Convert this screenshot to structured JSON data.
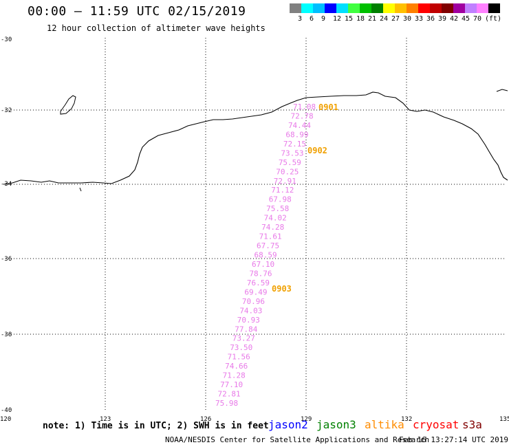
{
  "title": "00:00 – 11:59 UTC 02/15/2019",
  "subtitle": "12 hour collection of altimeter wave heights",
  "legend": {
    "colors": [
      "#808080",
      "#00ffff",
      "#00bfff",
      "#0000ff",
      "#00dfff",
      "#40ff40",
      "#00c000",
      "#008000",
      "#ffff00",
      "#ffc000",
      "#ff8000",
      "#ff0000",
      "#c00000",
      "#800000",
      "#a000a0",
      "#c080ff",
      "#ff80ff",
      "#000000"
    ],
    "labels": [
      "3",
      "6",
      "9",
      "12",
      "15",
      "18",
      "21",
      "24",
      "27",
      "30",
      "33",
      "36",
      "39",
      "42",
      "45",
      "70",
      "(ft)"
    ]
  },
  "lat_labels": [
    "-30",
    "-32",
    "-34",
    "-36",
    "-38",
    "-40"
  ],
  "lon_labels": [
    "120",
    "123",
    "126",
    "129",
    "132",
    "135"
  ],
  "track_values": [
    "71.08",
    "72.78",
    "74.44",
    "68.99",
    "72.15",
    "73.53",
    "75.59",
    "70.25",
    "72.91",
    "71.12",
    "67.98",
    "75.58",
    "74.02",
    "74.28",
    "71.61",
    "67.75",
    "68.59",
    "67.10",
    "78.76",
    "76.59",
    "69.49",
    "70.96",
    "74.03",
    "70.93",
    "77.84",
    "73.27",
    "73.50",
    "71.56",
    "74.66",
    "71.28",
    "77.10",
    "72.81",
    "75.98"
  ],
  "time_labels": [
    "0901",
    "0902",
    "0903"
  ],
  "colors": {
    "track": "#e879e8",
    "time": "#f0a000"
  },
  "note": "note: 1) Time is in UTC; 2) SWH is in feet",
  "satellites": [
    {
      "name": "jason2",
      "color": "#0000ff"
    },
    {
      "name": "jason3",
      "color": "#008000"
    },
    {
      "name": "altika",
      "color": "#ff8c00"
    },
    {
      "name": "cryosat",
      "color": "#ff0000"
    },
    {
      "name": "s3a",
      "color": "#800000"
    }
  ],
  "footer_left": "NOAA/NESDIS Center for Satellite Applications and Research",
  "footer_right": "Feb 16 13:27:14 UTC 2019"
}
